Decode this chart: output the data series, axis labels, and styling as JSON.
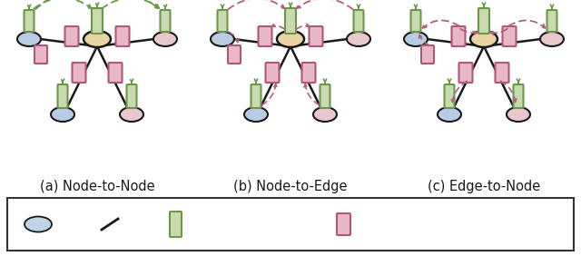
{
  "panel_labels": [
    "(a) Node-to-Node",
    "(b) Node-to-Edge",
    "(c) Edge-to-Node"
  ],
  "node_color_blue": "#b8cce4",
  "node_color_center": "#e8d5a3",
  "node_color_pink": "#e8c8cc",
  "node_color_dark": "#2a2a2a",
  "node_embedding_fill": "#c8dab0",
  "node_embedding_stroke": "#6a9848",
  "edge_embedding_fill": "#e8b8c8",
  "edge_embedding_stroke": "#b05878",
  "arrow_node_color": "#6a9848",
  "arrow_edge_color": "#b06080",
  "line_color": "#1a1a1a",
  "text_color": "#1a1a1a",
  "bg_color": "#ffffff",
  "legend_node_fill": "#c0d4e8",
  "subtitle_fontsize": 10.5,
  "legend_fontsize": 9.5
}
